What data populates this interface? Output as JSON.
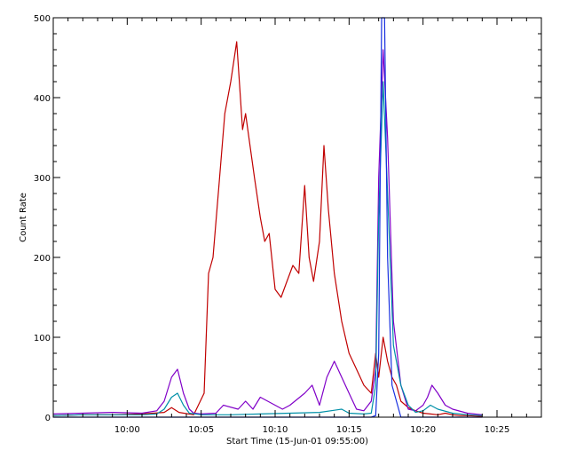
{
  "chart_data": {
    "type": "line",
    "title": "",
    "xlabel": "Start Time (15-Jun-01 09:55:00)",
    "ylabel": "Count Rate",
    "xlim_minutes": [
      0,
      33
    ],
    "ylim": [
      0,
      500
    ],
    "x_tick_minutes": [
      5,
      10,
      15,
      20,
      25,
      30
    ],
    "x_tick_labels": [
      "10:00",
      "10:05",
      "10:10",
      "10:15",
      "10:20",
      "10:25"
    ],
    "y_ticks": [
      0,
      100,
      200,
      300,
      400,
      500
    ],
    "y_tick_labels": [
      "0",
      "100",
      "200",
      "300",
      "400",
      "500"
    ],
    "grid": false,
    "legend": "none",
    "x_units": "minutes after 09:55:00",
    "series": [
      {
        "color": "#c00000",
        "x": [
          0,
          2,
          4,
          6,
          7.5,
          8,
          8.5,
          9.5,
          10.2,
          10.5,
          10.8,
          11.2,
          11.6,
          12.0,
          12.4,
          12.8,
          13.0,
          13.3,
          13.6,
          14.0,
          14.3,
          14.6,
          15.0,
          15.4,
          15.8,
          16.2,
          16.6,
          17.0,
          17.3,
          17.6,
          18.0,
          18.3,
          18.6,
          19.0,
          19.5,
          20.0,
          20.5,
          21.0,
          21.5,
          21.8,
          22.0,
          22.3,
          22.6,
          22.9,
          23.2,
          23.5,
          24.0,
          24.5,
          25.0,
          25.5,
          26.0,
          26.5,
          27.0,
          27.5,
          28.0,
          29.0
        ],
        "values": [
          2,
          3,
          3,
          4,
          6,
          12,
          6,
          3,
          30,
          180,
          200,
          290,
          380,
          420,
          470,
          360,
          380,
          340,
          300,
          250,
          220,
          230,
          160,
          150,
          170,
          190,
          180,
          290,
          200,
          170,
          220,
          340,
          260,
          180,
          120,
          80,
          60,
          40,
          30,
          80,
          50,
          100,
          70,
          50,
          40,
          20,
          12,
          8,
          5,
          4,
          3,
          5,
          3,
          2,
          2,
          1
        ]
      },
      {
        "color": "#8000c8",
        "x": [
          0,
          2,
          4,
          6,
          7.0,
          7.5,
          8.0,
          8.4,
          8.8,
          9.2,
          9.5,
          10.0,
          11.0,
          11.5,
          12.5,
          13.0,
          13.5,
          14.0,
          15.0,
          15.5,
          16.0,
          17.0,
          17.5,
          18.0,
          18.5,
          19.0,
          20.0,
          20.5,
          21.0,
          21.5,
          21.8,
          22.0,
          22.3,
          22.6,
          23.0,
          23.5,
          24.0,
          24.5,
          25.0,
          25.3,
          25.6,
          26.0,
          26.5,
          27.0,
          28.0,
          29.0
        ],
        "values": [
          4,
          5,
          6,
          5,
          8,
          20,
          50,
          60,
          30,
          10,
          5,
          4,
          5,
          15,
          10,
          20,
          10,
          25,
          15,
          10,
          15,
          30,
          40,
          15,
          50,
          70,
          30,
          10,
          8,
          20,
          60,
          300,
          460,
          350,
          120,
          40,
          10,
          8,
          15,
          25,
          40,
          30,
          15,
          10,
          5,
          3
        ]
      },
      {
        "color": "#0090a8",
        "x": [
          0,
          2,
          4,
          6,
          7.0,
          7.5,
          8.0,
          8.4,
          8.8,
          9.2,
          10.0,
          12.0,
          14.0,
          16.0,
          18.0,
          19.5,
          20.0,
          21.0,
          21.5,
          21.8,
          22.0,
          22.3,
          22.6,
          23.0,
          23.5,
          24.0,
          24.5,
          25.0,
          25.5,
          26.0,
          27.0,
          28.0,
          29.0
        ],
        "values": [
          2,
          3,
          3,
          3,
          4,
          10,
          25,
          30,
          15,
          5,
          3,
          3,
          4,
          5,
          6,
          10,
          5,
          4,
          5,
          40,
          250,
          420,
          280,
          90,
          40,
          15,
          6,
          8,
          15,
          10,
          5,
          3,
          2
        ]
      },
      {
        "color": "#1830e0",
        "x": [
          0,
          21.5,
          21.8,
          22.0,
          22.2,
          22.4,
          22.6,
          22.9,
          23.5,
          29.0
        ],
        "values": [
          0,
          0,
          2,
          80,
          500,
          500,
          200,
          40,
          0,
          0
        ]
      }
    ]
  }
}
